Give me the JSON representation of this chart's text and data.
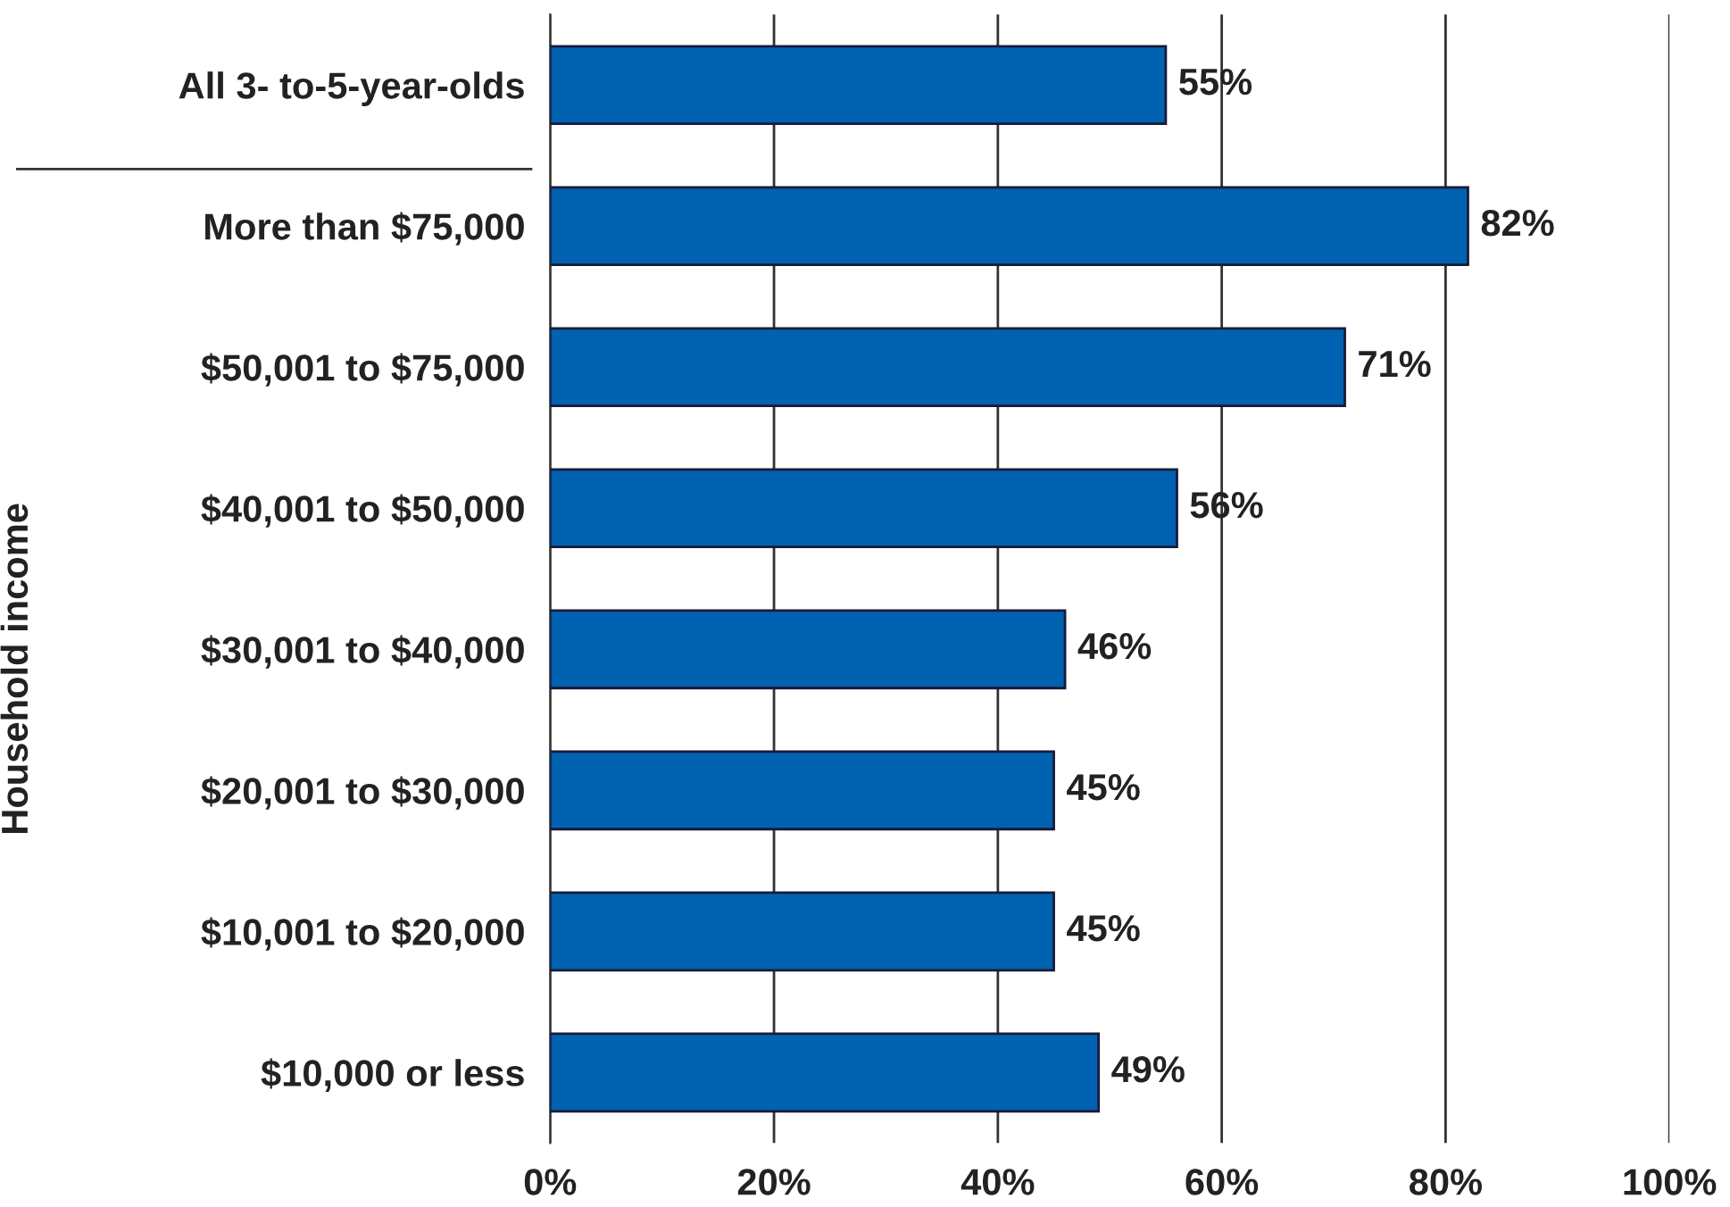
{
  "chart_data": {
    "type": "bar",
    "orientation": "horizontal",
    "ylabel": "Household income",
    "categories": [
      "All 3- to-5-year-olds",
      "More than $75,000",
      "$50,001 to $75,000",
      "$40,001 to $50,000",
      "$30,001 to $40,000",
      "$20,001 to $30,000",
      "$10,001 to $20,000",
      "$10,000 or less"
    ],
    "values": [
      55,
      82,
      71,
      56,
      46,
      45,
      45,
      49
    ],
    "value_labels": [
      "55%",
      "82%",
      "71%",
      "56%",
      "46%",
      "45%",
      "45%",
      "49%"
    ],
    "color": "#0062b0",
    "xlim": [
      0,
      100
    ],
    "xticks": [
      {
        "value": 0,
        "label": "0%"
      },
      {
        "value": 20,
        "label": "20%"
      },
      {
        "value": 40,
        "label": "40%"
      },
      {
        "value": 60,
        "label": "60%"
      },
      {
        "value": 80,
        "label": "80%"
      },
      {
        "value": 100,
        "label": "100%"
      }
    ],
    "grid": "x"
  }
}
